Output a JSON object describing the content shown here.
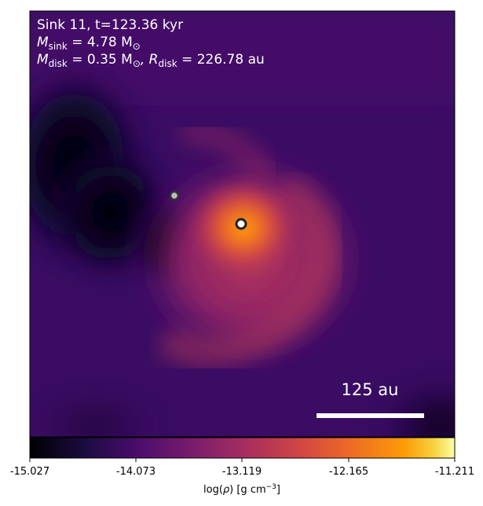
{
  "header": {
    "line1": "Sink 11, t=123.36 kyr",
    "line2_main": "M",
    "line2_sub": "sink",
    "line2_rest": " = 4.78 M",
    "line2_sun": "⊙",
    "line3_main": "M",
    "line3_sub": "disk",
    "line3_mid": " = 0.35 M",
    "line3_sun": "⊙",
    "line3_r": ", R",
    "line3_rsub": "disk",
    "line3_rest": " = 226.78 au"
  },
  "scalebar": {
    "label": "125 au",
    "length_au": 125
  },
  "colorbar": {
    "ticks": [
      "-15.027",
      "-14.073",
      "-13.119",
      "-12.165",
      "-11.211"
    ],
    "label_pre": "log(",
    "label_rho": "ρ",
    "label_post": ") [g cm",
    "label_exp": "−3",
    "label_end": "]",
    "colormap": "inferno"
  },
  "sinks": [
    {
      "name": "primary",
      "color": "#ffffff"
    },
    {
      "name": "secondary",
      "color": "#bdbdbd"
    }
  ]
}
